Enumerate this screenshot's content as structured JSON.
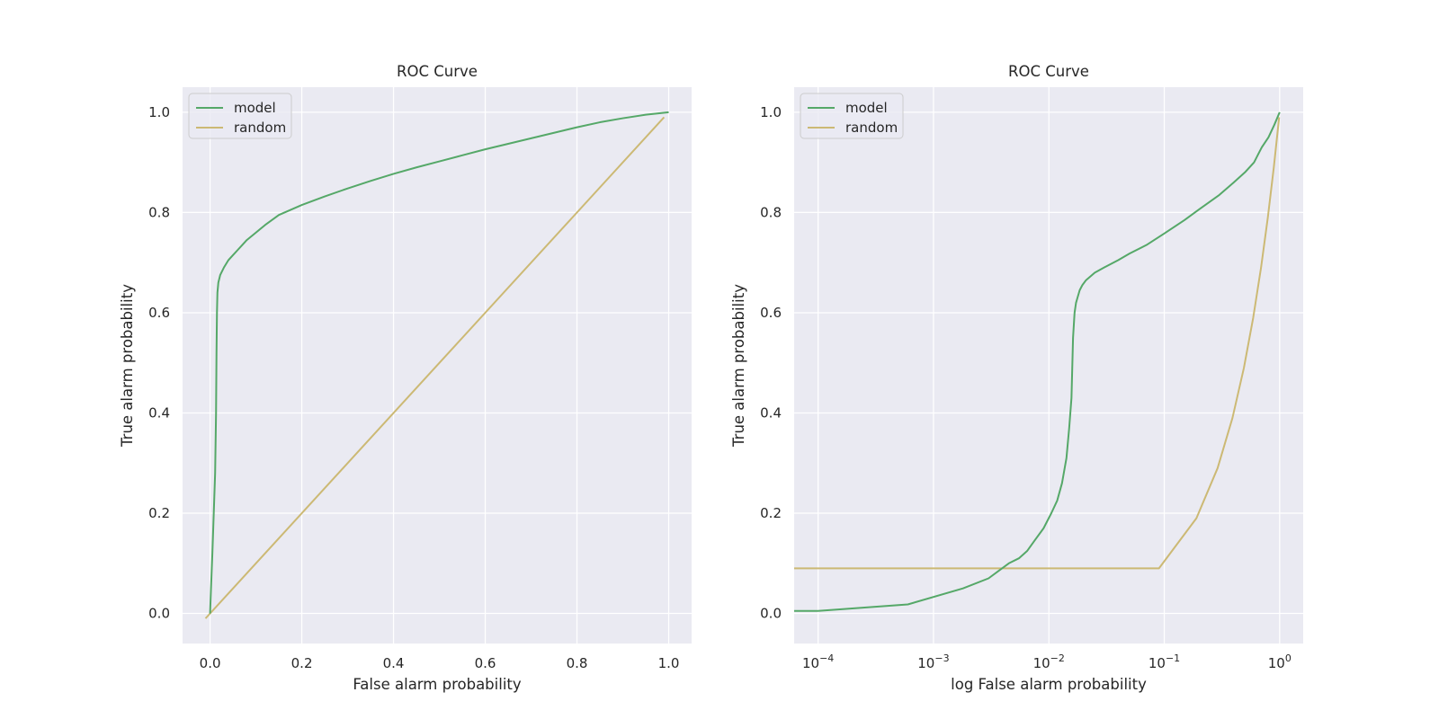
{
  "chart_data": [
    {
      "type": "line",
      "title": "ROC Curve",
      "xlabel": "False alarm probability",
      "ylabel": "True alarm probability",
      "xscale": "linear",
      "xlim": [
        -0.06,
        1.05
      ],
      "ylim": [
        -0.06,
        1.05
      ],
      "xticks": [
        0.0,
        0.2,
        0.4,
        0.6,
        0.8,
        1.0
      ],
      "xtick_labels": [
        "0.0",
        "0.2",
        "0.4",
        "0.6",
        "0.8",
        "1.0"
      ],
      "yticks": [
        0.0,
        0.2,
        0.4,
        0.6,
        0.8,
        1.0
      ],
      "ytick_labels": [
        "0.0",
        "0.2",
        "0.4",
        "0.6",
        "0.8",
        "1.0"
      ],
      "grid": true,
      "legend_position": "upper-left",
      "series": [
        {
          "name": "model",
          "color": "#55a868",
          "x": [
            0.0,
            0.002,
            0.005,
            0.008,
            0.011,
            0.013,
            0.014,
            0.015,
            0.016,
            0.018,
            0.022,
            0.03,
            0.04,
            0.05,
            0.06,
            0.07,
            0.08,
            0.1,
            0.12,
            0.15,
            0.2,
            0.25,
            0.3,
            0.35,
            0.4,
            0.45,
            0.5,
            0.55,
            0.6,
            0.65,
            0.7,
            0.75,
            0.8,
            0.85,
            0.9,
            0.95,
            1.0
          ],
          "y": [
            0.0,
            0.05,
            0.12,
            0.2,
            0.28,
            0.4,
            0.52,
            0.6,
            0.64,
            0.66,
            0.675,
            0.69,
            0.705,
            0.715,
            0.725,
            0.735,
            0.745,
            0.76,
            0.775,
            0.795,
            0.815,
            0.832,
            0.848,
            0.863,
            0.877,
            0.89,
            0.902,
            0.914,
            0.926,
            0.937,
            0.948,
            0.959,
            0.97,
            0.98,
            0.988,
            0.995,
            1.0
          ]
        },
        {
          "name": "random",
          "color": "#ccb974",
          "x": [
            -0.01,
            0.99
          ],
          "y": [
            -0.01,
            0.99
          ]
        }
      ]
    },
    {
      "type": "line",
      "title": "ROC Curve",
      "xlabel": "log False alarm probability",
      "ylabel": "True alarm probability",
      "xscale": "log",
      "xlim": [
        6.2e-05,
        1.6
      ],
      "ylim": [
        -0.06,
        1.05
      ],
      "xticks": [
        0.0001,
        0.001,
        0.01,
        0.1,
        1
      ],
      "xtick_labels": [
        {
          "base": "10",
          "exp": "−4"
        },
        {
          "base": "10",
          "exp": "−3"
        },
        {
          "base": "10",
          "exp": "−2"
        },
        {
          "base": "10",
          "exp": "−1"
        },
        {
          "base": "10",
          "exp": "0"
        }
      ],
      "yticks": [
        0.0,
        0.2,
        0.4,
        0.6,
        0.8,
        1.0
      ],
      "ytick_labels": [
        "0.0",
        "0.2",
        "0.4",
        "0.6",
        "0.8",
        "1.0"
      ],
      "grid": true,
      "legend_position": "upper-left",
      "series": [
        {
          "name": "model",
          "color": "#55a868",
          "x": [
            6.2e-05,
            0.0001,
            0.0006,
            0.0018,
            0.003,
            0.0045,
            0.0055,
            0.0065,
            0.0075,
            0.009,
            0.0105,
            0.0118,
            0.013,
            0.0142,
            0.015,
            0.0157,
            0.0162,
            0.0167,
            0.0172,
            0.0177,
            0.0185,
            0.0195,
            0.021,
            0.025,
            0.03,
            0.04,
            0.05,
            0.07,
            0.1,
            0.15,
            0.2,
            0.3,
            0.4,
            0.5,
            0.6,
            0.7,
            0.8,
            0.9,
            1.0
          ],
          "y": [
            0.005,
            0.005,
            0.018,
            0.05,
            0.07,
            0.1,
            0.11,
            0.125,
            0.145,
            0.17,
            0.2,
            0.225,
            0.26,
            0.31,
            0.37,
            0.43,
            0.55,
            0.6,
            0.62,
            0.63,
            0.645,
            0.655,
            0.665,
            0.68,
            0.69,
            0.705,
            0.718,
            0.735,
            0.758,
            0.785,
            0.806,
            0.835,
            0.86,
            0.88,
            0.9,
            0.93,
            0.95,
            0.975,
            1.0
          ]
        },
        {
          "name": "random",
          "color": "#ccb974",
          "x": [
            6.2e-05,
            0.09,
            0.19,
            0.29,
            0.39,
            0.49,
            0.59,
            0.69,
            0.79,
            0.89,
            0.99
          ],
          "y": [
            0.09,
            0.09,
            0.19,
            0.29,
            0.39,
            0.49,
            0.59,
            0.69,
            0.79,
            0.89,
            0.99
          ]
        }
      ]
    }
  ],
  "colors": {
    "axes_background": "#eaeaf2",
    "grid": "#ffffff",
    "text": "#262626"
  }
}
